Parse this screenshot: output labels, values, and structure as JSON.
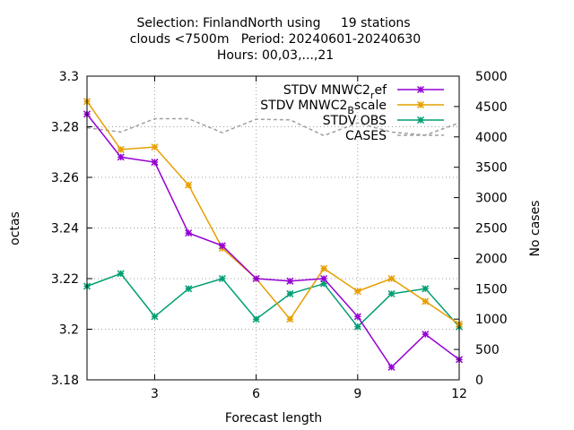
{
  "chart_data": {
    "type": "line",
    "title_lines": [
      "Selection: FinlandNorth using     19 stations",
      "clouds <7500m   Period: 20240601-20240630",
      "Hours: 00,03,...,21"
    ],
    "xlabel": "Forecast length",
    "ylabel": "octas",
    "y2label": "No cases",
    "xlim": [
      1,
      12
    ],
    "ylim": [
      3.18,
      3.3
    ],
    "y2lim": [
      0,
      5000
    ],
    "x_ticks": [
      "3",
      "6",
      "9",
      "12"
    ],
    "y_ticks": [
      "3.18",
      "3.2",
      "3.22",
      "3.24",
      "3.26",
      "3.28",
      "3.3"
    ],
    "y2_ticks": [
      "0",
      "500",
      "1000",
      "1500",
      "2000",
      "2500",
      "3000",
      "3500",
      "4000",
      "4500",
      "5000"
    ],
    "grid": true,
    "legend_position": "top-right",
    "x": [
      1,
      2,
      3,
      4,
      5,
      6,
      7,
      8,
      9,
      10,
      11,
      12
    ],
    "series": [
      {
        "name": "STDV MNWC2",
        "name_sub": "r",
        "name_tail": "ef",
        "color": "#9400d3",
        "axis": "y1",
        "values": [
          3.285,
          3.268,
          3.266,
          3.238,
          3.233,
          3.22,
          3.219,
          3.22,
          3.205,
          3.185,
          3.198,
          3.188
        ]
      },
      {
        "name": "STDV MNWC2",
        "name_sub": "B",
        "name_tail": "scale",
        "color": "#e69f00",
        "axis": "y1",
        "values": [
          3.29,
          3.271,
          3.272,
          3.257,
          3.232,
          3.22,
          3.204,
          3.224,
          3.215,
          3.22,
          3.211,
          3.202
        ]
      },
      {
        "name": "STDV OBS",
        "name_sub": "",
        "name_tail": "",
        "color": "#009e73",
        "axis": "y1",
        "values": [
          3.217,
          3.222,
          3.205,
          3.216,
          3.22,
          3.204,
          3.214,
          3.218,
          3.201,
          3.214,
          3.216,
          3.201
        ]
      },
      {
        "name": "CASES",
        "name_sub": "",
        "name_tail": "",
        "color": "#a0a0a0",
        "axis": "y2",
        "dashed": true,
        "values": [
          4150,
          4080,
          4300,
          4300,
          4070,
          4290,
          4280,
          4020,
          4230,
          4080,
          4030,
          4230
        ]
      }
    ]
  }
}
